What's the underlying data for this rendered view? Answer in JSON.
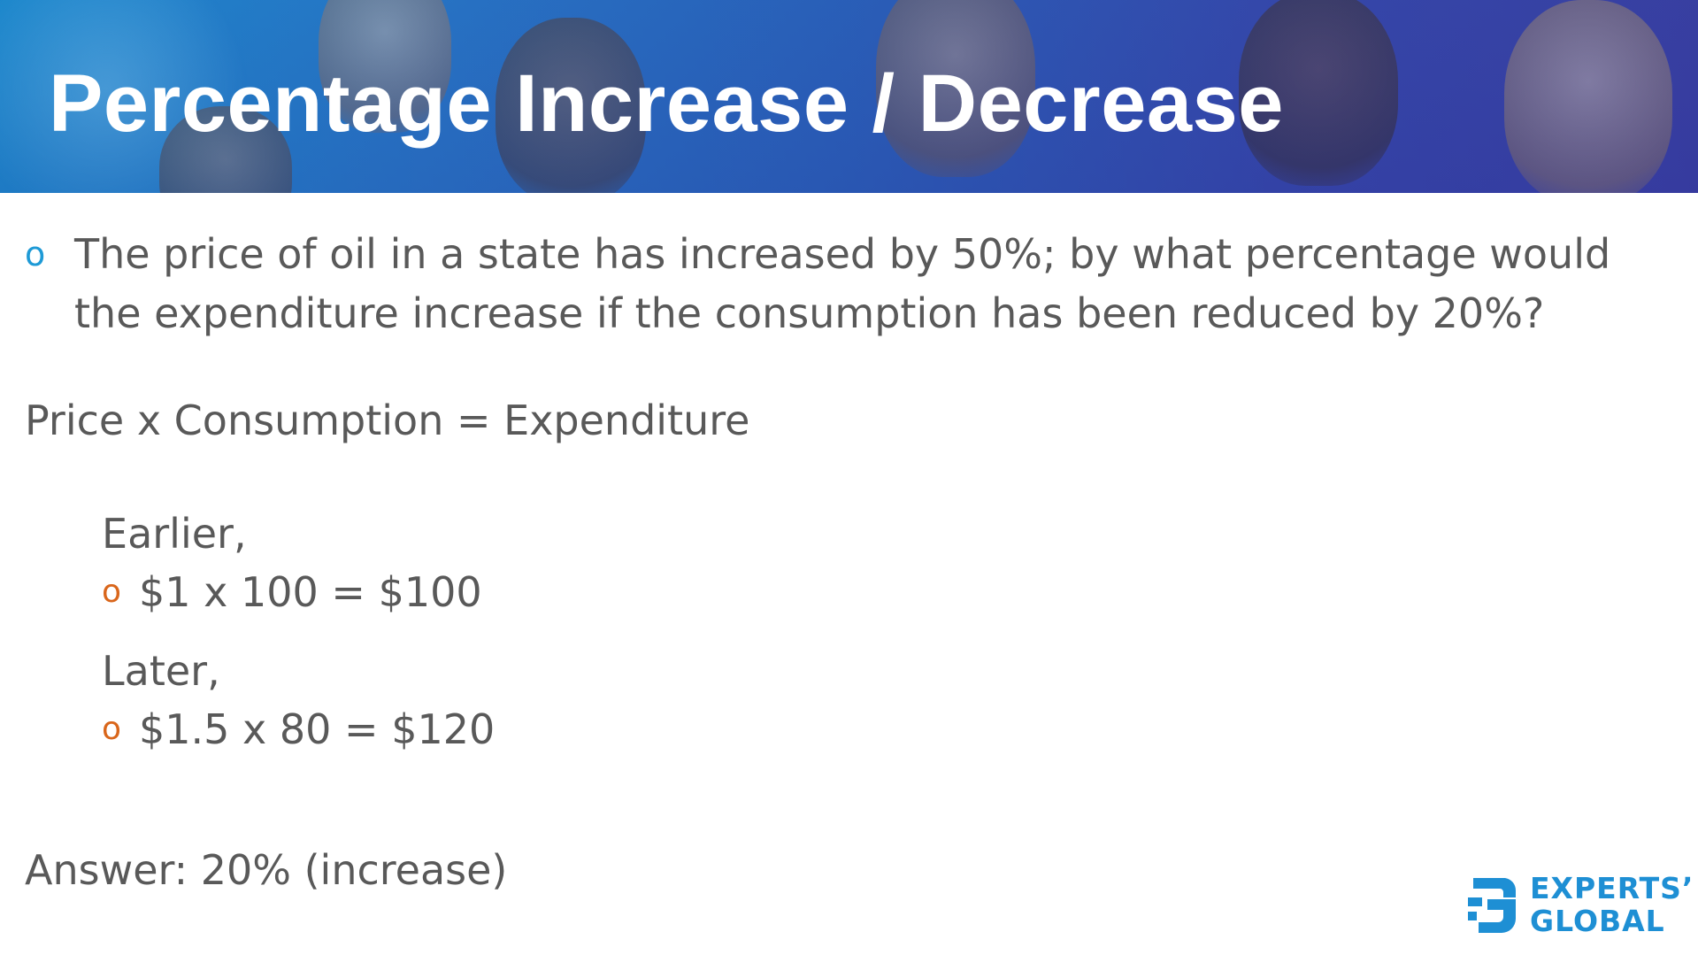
{
  "header": {
    "title": "Percentage Increase / Decrease"
  },
  "question": {
    "bullet": "o",
    "text": "The price of oil in a state has increased by 50%; by what percentage would the expenditure increase if the consumption has been reduced by 20%?"
  },
  "formula": "Price x Consumption = Expenditure",
  "earlier": {
    "label": "Earlier,",
    "bullet": "o",
    "calc": "$1 x 100 = $100"
  },
  "later": {
    "label": "Later,",
    "bullet": "o",
    "calc": "$1.5 x 80 = $120"
  },
  "answer": "Answer: 20% (increase)",
  "logo": {
    "line1": "EXPERTS’",
    "line2": "GLOBAL",
    "color": "#1e8fd4"
  },
  "colors": {
    "blue_bullet": "#1e9ad6",
    "orange_bullet": "#d9661b",
    "body_text": "#595959"
  }
}
